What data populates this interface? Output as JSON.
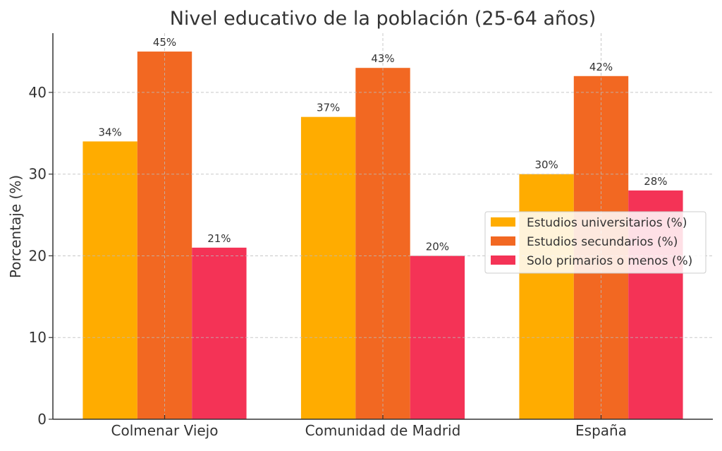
{
  "chart_data": {
    "type": "bar",
    "title": "Nivel educativo de la población (25-64 años)",
    "xlabel": "",
    "ylabel": "Porcentaje (%)",
    "categories": [
      "Colmenar Viejo",
      "Comunidad de Madrid",
      "España"
    ],
    "series": [
      {
        "name": "Estudios universitarios (%)",
        "color": "#FFAC00",
        "values": [
          34,
          37,
          30
        ]
      },
      {
        "name": "Estudios secundarios (%)",
        "color": "#F26822",
        "values": [
          45,
          43,
          42
        ]
      },
      {
        "name": "Solo primarios o menos (%)",
        "color": "#F43356",
        "values": [
          21,
          20,
          28
        ]
      }
    ],
    "value_label_suffix": "%",
    "ylim": [
      0,
      47.25
    ],
    "yticks": [
      0,
      10,
      20,
      30,
      40
    ],
    "grid": true,
    "legend_position": "top-right"
  }
}
